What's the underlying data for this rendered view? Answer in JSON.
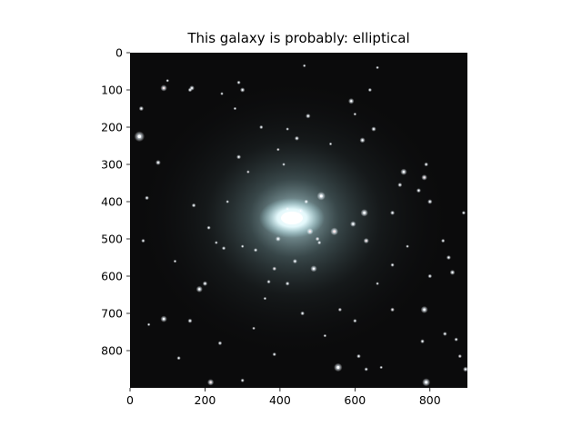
{
  "figure": {
    "title": "This galaxy is probably: elliptical"
  },
  "image": {
    "description_name": "galaxy-image",
    "prediction": "elliptical",
    "colors": {
      "background": "#0b0b0c",
      "core": "#e9fbff",
      "halo": "#bfd7dc",
      "star": "#ffffff"
    }
  },
  "axes": {
    "x_ticks": [
      "0",
      "200",
      "400",
      "600",
      "800"
    ],
    "y_ticks": [
      "0",
      "100",
      "200",
      "300",
      "400",
      "500",
      "600",
      "700",
      "800"
    ],
    "x_range": [
      0,
      900
    ],
    "y_range": [
      0,
      900
    ]
  }
}
